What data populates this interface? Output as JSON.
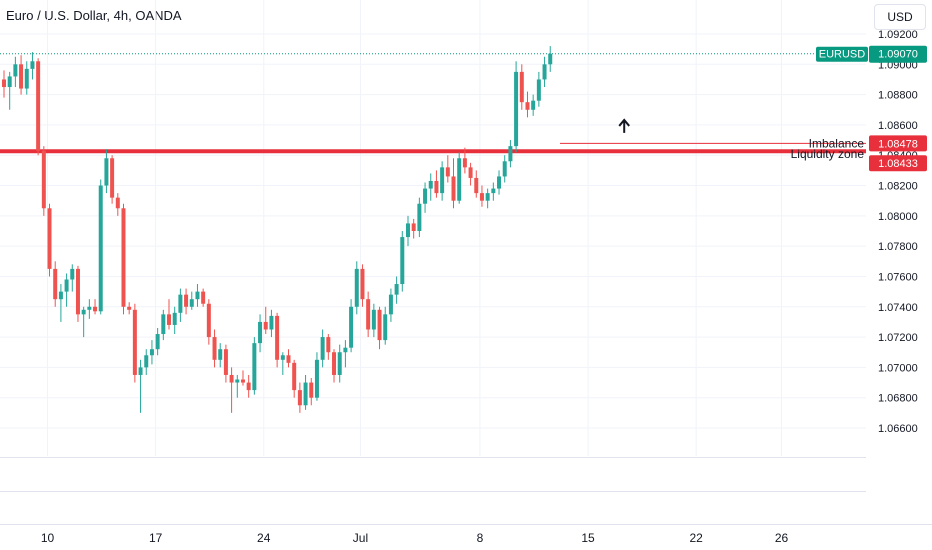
{
  "header": {
    "title": "Euro / U.S. Dollar, 4h, OANDA",
    "currency": "USD"
  },
  "colors": {
    "up": "#26a69a",
    "down": "#ef5350",
    "zone": "#e8303c",
    "badge_symbol": "#089981",
    "grid": "#f0f3fa"
  },
  "chart_data": {
    "type": "candlestick",
    "symbol": "EURUSD",
    "timeframe": "4h",
    "ylim": [
      1.065,
      1.0925
    ],
    "y_ticks": [
      "1.06600",
      "1.06800",
      "1.07000",
      "1.07200",
      "1.07400",
      "1.07600",
      "1.07800",
      "1.08000",
      "1.08200",
      "1.08400",
      "1.08600",
      "1.08800",
      "1.09000",
      "1.09200"
    ],
    "x_ticks": [
      {
        "label": "10",
        "index": 8
      },
      {
        "label": "17",
        "index": 27
      },
      {
        "label": "24",
        "index": 46
      },
      {
        "label": "Jul",
        "index": 63
      },
      {
        "label": "8",
        "index": 84
      },
      {
        "label": "15",
        "index": 103
      },
      {
        "label": "22",
        "index": 122
      },
      {
        "label": "26",
        "index": 137
      }
    ],
    "last_price": {
      "label": "EURUSD",
      "value": 1.0907
    },
    "zones": [
      {
        "name": "Imbalance",
        "price": 1.08478
      },
      {
        "name": "Liquidity zone",
        "price": 1.08433
      }
    ],
    "arrow_marker": {
      "index": 109,
      "price": 1.086,
      "direction": "up"
    },
    "candles": [
      [
        1.089,
        1.0896,
        1.0878,
        1.0885
      ],
      [
        1.0885,
        1.0895,
        1.087,
        1.0892
      ],
      [
        1.0892,
        1.0905,
        1.0885,
        1.09
      ],
      [
        1.09,
        1.0906,
        1.088,
        1.0884
      ],
      [
        1.0884,
        1.0902,
        1.088,
        1.0897
      ],
      [
        1.0897,
        1.0908,
        1.089,
        1.0902
      ],
      [
        1.0902,
        1.0904,
        1.084,
        1.0843
      ],
      [
        1.0843,
        1.0846,
        1.08,
        1.0805
      ],
      [
        1.0805,
        1.0808,
        1.076,
        1.0765
      ],
      [
        1.0765,
        1.077,
        1.074,
        1.0745
      ],
      [
        1.0745,
        1.0755,
        1.073,
        1.075
      ],
      [
        1.075,
        1.0762,
        1.074,
        1.0758
      ],
      [
        1.0758,
        1.0768,
        1.075,
        1.0765
      ],
      [
        1.0765,
        1.0767,
        1.073,
        1.0735
      ],
      [
        1.0735,
        1.074,
        1.072,
        1.0738
      ],
      [
        1.0738,
        1.0745,
        1.0732,
        1.074
      ],
      [
        1.074,
        1.0745,
        1.0735,
        1.0737
      ],
      [
        1.0737,
        1.0824,
        1.0735,
        1.082
      ],
      [
        1.082,
        1.0844,
        1.0815,
        1.0838
      ],
      [
        1.0838,
        1.084,
        1.0808,
        1.0812
      ],
      [
        1.0812,
        1.0815,
        1.08,
        1.0805
      ],
      [
        1.0805,
        1.0808,
        1.0735,
        1.074
      ],
      [
        1.074,
        1.0743,
        1.0735,
        1.0738
      ],
      [
        1.0738,
        1.0742,
        1.069,
        1.0695
      ],
      [
        1.0695,
        1.0705,
        1.067,
        1.07
      ],
      [
        1.07,
        1.0712,
        1.0695,
        1.0708
      ],
      [
        1.0708,
        1.0718,
        1.0702,
        1.0712
      ],
      [
        1.0712,
        1.0726,
        1.0708,
        1.0722
      ],
      [
        1.0722,
        1.0738,
        1.0718,
        1.0735
      ],
      [
        1.0735,
        1.0745,
        1.0725,
        1.0728
      ],
      [
        1.0728,
        1.074,
        1.0722,
        1.0736
      ],
      [
        1.0736,
        1.0752,
        1.073,
        1.0748
      ],
      [
        1.0748,
        1.0752,
        1.0735,
        1.074
      ],
      [
        1.074,
        1.075,
        1.0738,
        1.0745
      ],
      [
        1.0745,
        1.0755,
        1.074,
        1.075
      ],
      [
        1.075,
        1.0752,
        1.074,
        1.0742
      ],
      [
        1.0742,
        1.0745,
        1.0715,
        1.072
      ],
      [
        1.072,
        1.0725,
        1.07,
        1.0705
      ],
      [
        1.0705,
        1.0716,
        1.07,
        1.0712
      ],
      [
        1.0712,
        1.0715,
        1.069,
        1.0695
      ],
      [
        1.0695,
        1.07,
        1.067,
        1.069
      ],
      [
        1.069,
        1.0695,
        1.068,
        1.0692
      ],
      [
        1.0692,
        1.0698,
        1.0688,
        1.069
      ],
      [
        1.069,
        1.0695,
        1.068,
        1.0685
      ],
      [
        1.0685,
        1.072,
        1.0682,
        1.0716
      ],
      [
        1.0716,
        1.0735,
        1.071,
        1.073
      ],
      [
        1.073,
        1.074,
        1.0722,
        1.0725
      ],
      [
        1.0725,
        1.0738,
        1.072,
        1.0734
      ],
      [
        1.0734,
        1.0736,
        1.07,
        1.0705
      ],
      [
        1.0705,
        1.071,
        1.0695,
        1.0708
      ],
      [
        1.0708,
        1.0712,
        1.07,
        1.0703
      ],
      [
        1.0703,
        1.0705,
        1.068,
        1.0685
      ],
      [
        1.0685,
        1.069,
        1.067,
        1.0675
      ],
      [
        1.0675,
        1.0695,
        1.0672,
        1.069
      ],
      [
        1.069,
        1.0693,
        1.0675,
        1.068
      ],
      [
        1.068,
        1.071,
        1.0678,
        1.0705
      ],
      [
        1.0705,
        1.0725,
        1.07,
        1.072
      ],
      [
        1.072,
        1.0722,
        1.0705,
        1.071
      ],
      [
        1.071,
        1.0712,
        1.069,
        1.0695
      ],
      [
        1.0695,
        1.0715,
        1.069,
        1.071
      ],
      [
        1.071,
        1.0718,
        1.07,
        1.0713
      ],
      [
        1.0713,
        1.0745,
        1.071,
        1.074
      ],
      [
        1.074,
        1.077,
        1.0735,
        1.0765
      ],
      [
        1.0765,
        1.0768,
        1.074,
        1.0745
      ],
      [
        1.0745,
        1.075,
        1.072,
        1.0725
      ],
      [
        1.0725,
        1.0742,
        1.072,
        1.0738
      ],
      [
        1.0738,
        1.074,
        1.0712,
        1.0718
      ],
      [
        1.0718,
        1.074,
        1.0715,
        1.0735
      ],
      [
        1.0735,
        1.0752,
        1.073,
        1.0748
      ],
      [
        1.0748,
        1.076,
        1.0742,
        1.0755
      ],
      [
        1.0755,
        1.079,
        1.075,
        1.0786
      ],
      [
        1.0786,
        1.08,
        1.078,
        1.0795
      ],
      [
        1.0795,
        1.0798,
        1.0785,
        1.079
      ],
      [
        1.079,
        1.0812,
        1.0786,
        1.0808
      ],
      [
        1.0808,
        1.0822,
        1.0802,
        1.0818
      ],
      [
        1.0818,
        1.0828,
        1.081,
        1.0823
      ],
      [
        1.0823,
        1.083,
        1.0812,
        1.0815
      ],
      [
        1.0815,
        1.0836,
        1.081,
        1.0832
      ],
      [
        1.0832,
        1.084,
        1.0822,
        1.0826
      ],
      [
        1.0826,
        1.0838,
        1.0805,
        1.081
      ],
      [
        1.081,
        1.0842,
        1.0808,
        1.0838
      ],
      [
        1.0838,
        1.0845,
        1.0828,
        1.0832
      ],
      [
        1.0832,
        1.0835,
        1.082,
        1.0825
      ],
      [
        1.0825,
        1.083,
        1.0812,
        1.0815
      ],
      [
        1.0815,
        1.082,
        1.0806,
        1.081
      ],
      [
        1.081,
        1.0818,
        1.0805,
        1.0815
      ],
      [
        1.0815,
        1.0822,
        1.081,
        1.0818
      ],
      [
        1.0818,
        1.083,
        1.0814,
        1.0826
      ],
      [
        1.0826,
        1.084,
        1.0822,
        1.0836
      ],
      [
        1.0836,
        1.085,
        1.0832,
        1.0846
      ],
      [
        1.0846,
        1.0902,
        1.0842,
        1.0895
      ],
      [
        1.0895,
        1.09,
        1.087,
        1.0875
      ],
      [
        1.0875,
        1.0882,
        1.0865,
        1.087
      ],
      [
        1.087,
        1.088,
        1.0866,
        1.0876
      ],
      [
        1.0876,
        1.0895,
        1.0872,
        1.089
      ],
      [
        1.089,
        1.0905,
        1.0885,
        1.09
      ],
      [
        1.09,
        1.0912,
        1.0895,
        1.0907
      ]
    ]
  }
}
